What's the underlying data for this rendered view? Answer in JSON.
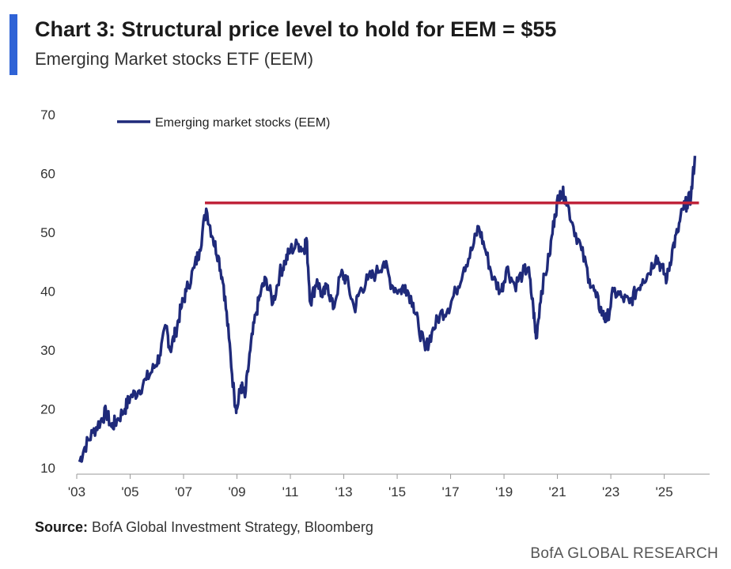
{
  "header": {
    "title": "Chart 3: Structural price level to hold for EEM = $55",
    "subtitle": "Emerging Market stocks ETF (EEM)"
  },
  "footer": {
    "source_label": "Source:",
    "source_text": " BofA Global Investment Strategy, Bloomberg",
    "brand": "BofA GLOBAL RESEARCH"
  },
  "colors": {
    "series": "#1f2a7a",
    "reference_line": "#c0243b",
    "accent": "#2f63d6",
    "text": "#222222"
  },
  "chart_data": {
    "type": "line",
    "title": "Chart 3: Structural price level to hold for EEM = $55",
    "subtitle": "Emerging Market stocks ETF (EEM)",
    "xlabel": "",
    "ylabel": "",
    "xlim": [
      2003,
      2026.7
    ],
    "ylim": [
      10,
      70
    ],
    "x_ticks": [
      2003,
      2005,
      2007,
      2009,
      2011,
      2013,
      2015,
      2017,
      2019,
      2021,
      2023,
      2025
    ],
    "x_tick_labels": [
      "'03",
      "'05",
      "'07",
      "'09",
      "'11",
      "'13",
      "'15",
      "'17",
      "'19",
      "'21",
      "'23",
      "'25"
    ],
    "y_ticks": [
      10,
      20,
      30,
      40,
      50,
      60,
      70
    ],
    "y_tick_labels": [
      "10",
      "20",
      "30",
      "40",
      "50",
      "60",
      "70"
    ],
    "grid": false,
    "legend_position": "top-left",
    "series": [
      {
        "name": "Emerging market stocks (EEM)",
        "x": [
          2003.1,
          2003.3,
          2003.6,
          2003.9,
          2004.1,
          2004.3,
          2004.5,
          2004.8,
          2005.0,
          2005.3,
          2005.6,
          2005.9,
          2006.1,
          2006.35,
          2006.5,
          2006.7,
          2006.9,
          2007.1,
          2007.4,
          2007.6,
          2007.85,
          2008.1,
          2008.3,
          2008.5,
          2008.7,
          2008.9,
          2009.0,
          2009.15,
          2009.3,
          2009.5,
          2009.7,
          2009.9,
          2010.1,
          2010.35,
          2010.6,
          2010.8,
          2011.0,
          2011.3,
          2011.5,
          2011.6,
          2011.75,
          2012.0,
          2012.2,
          2012.4,
          2012.6,
          2012.9,
          2013.1,
          2013.4,
          2013.6,
          2013.9,
          2014.2,
          2014.5,
          2014.8,
          2015.1,
          2015.3,
          2015.6,
          2015.8,
          2016.05,
          2016.3,
          2016.6,
          2016.9,
          2017.2,
          2017.5,
          2017.8,
          2018.05,
          2018.3,
          2018.6,
          2018.9,
          2019.1,
          2019.4,
          2019.7,
          2019.9,
          2020.1,
          2020.2,
          2020.4,
          2020.7,
          2020.9,
          2021.1,
          2021.3,
          2021.6,
          2021.9,
          2022.2,
          2022.45,
          2022.7,
          2022.85,
          2023.1,
          2023.4,
          2023.7,
          2023.95,
          2024.2,
          2024.4,
          2024.7,
          2024.9,
          2025.1,
          2025.3,
          2025.5,
          2025.7,
          2025.85,
          2026.0,
          2026.15
        ],
        "values": [
          11,
          13.5,
          16,
          18,
          19.5,
          17,
          18,
          20,
          22,
          23,
          25,
          27,
          29,
          34,
          30,
          33,
          37,
          40,
          44,
          47,
          54,
          49,
          46,
          41,
          32,
          22,
          20,
          24,
          22,
          30,
          36,
          40,
          42,
          38,
          43,
          45,
          47,
          48,
          47,
          49,
          38,
          42,
          39,
          41,
          37,
          43,
          42,
          37,
          40,
          42,
          43,
          45,
          41,
          40,
          41,
          38,
          34,
          30,
          33,
          36,
          37,
          40,
          44,
          47,
          51,
          47,
          42,
          40,
          44,
          41,
          43,
          44,
          37,
          32,
          40,
          46,
          53,
          57,
          56,
          51,
          47,
          42,
          39,
          36,
          35,
          40,
          39,
          38,
          40,
          42,
          43,
          46,
          44,
          42,
          47,
          50,
          54,
          55,
          56,
          63
        ]
      }
    ],
    "reference_lines": [
      {
        "name": "Structural price level",
        "y": 55,
        "x_start": 2007.8,
        "x_end": 2026.3
      }
    ]
  }
}
